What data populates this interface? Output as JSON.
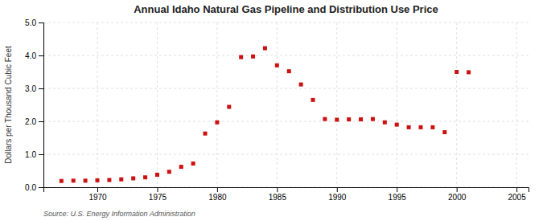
{
  "chart_data": {
    "type": "scatter",
    "title": "Annual Idaho Natural Gas Pipeline and Distribution Use Price",
    "ylabel": "Dollars per Thousand Cubic Feet",
    "source": "Source: U.S. Energy Information Administration",
    "x": [
      1967,
      1968,
      1969,
      1970,
      1971,
      1972,
      1973,
      1974,
      1975,
      1976,
      1977,
      1978,
      1979,
      1980,
      1981,
      1982,
      1983,
      1984,
      1985,
      1986,
      1987,
      1988,
      1989,
      1990,
      1991,
      1992,
      1993,
      1994,
      1995,
      1996,
      1997,
      1998,
      1999,
      2000,
      2001
    ],
    "values": [
      0.19,
      0.2,
      0.2,
      0.21,
      0.22,
      0.24,
      0.27,
      0.3,
      0.38,
      0.47,
      0.62,
      0.72,
      1.63,
      1.97,
      2.44,
      3.95,
      3.97,
      4.22,
      3.7,
      3.52,
      3.12,
      2.65,
      2.07,
      2.05,
      2.06,
      2.06,
      2.07,
      1.97,
      1.9,
      1.82,
      1.82,
      1.82,
      1.67,
      3.5,
      3.49
    ],
    "color": "#cc1111",
    "marker": "square",
    "xlim": [
      1965.5,
      2006
    ],
    "ylim": [
      0.0,
      5.0
    ],
    "xticks": [
      1970,
      1975,
      1980,
      1985,
      1990,
      1995,
      2000,
      2005
    ],
    "yticks": [
      {
        "value": 0,
        "label": "0.0"
      },
      {
        "value": 1,
        "label": "1.0"
      },
      {
        "value": 2,
        "label": "2.0"
      },
      {
        "value": 3,
        "label": "3.0"
      },
      {
        "value": 4,
        "label": "4.0"
      },
      {
        "value": 5,
        "label": "5.0"
      }
    ],
    "grid": true
  }
}
